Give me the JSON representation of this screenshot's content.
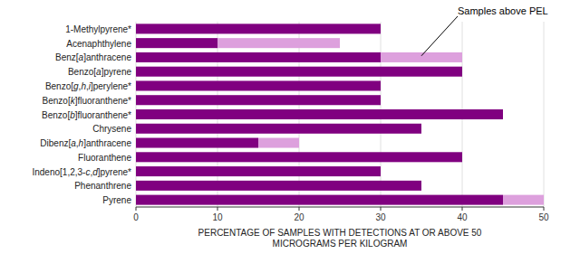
{
  "chart_data": {
    "type": "bar",
    "orientation": "horizontal",
    "stacked": true,
    "grid": true,
    "categories": [
      "1-Methylpyrene*",
      "Acenaphthylene",
      "Benz[a]anthracene",
      "Benzo[a]pyrene",
      "Benzo[g,h,i]perylene*",
      "Benzo[k]fluoranthene*",
      "Benzo[b]fluoranthene*",
      "Chrysene",
      "Dibenz[a,h]anthracene",
      "Fluoranthene",
      "Indeno[1,2,3-c,d]pyrene*",
      "Phenanthrene",
      "Pyrene"
    ],
    "series": [
      {
        "color": "#800080",
        "values": [
          30,
          10,
          30,
          40,
          30,
          30,
          45,
          35,
          15,
          40,
          30,
          35,
          45
        ]
      },
      {
        "color": "#DDA0DD",
        "values": [
          0,
          15,
          10,
          0,
          0,
          0,
          0,
          0,
          5,
          0,
          0,
          0,
          5
        ]
      }
    ],
    "xlim": [
      0,
      50
    ],
    "xticks": [
      0,
      10,
      20,
      30,
      40,
      50
    ],
    "xlabel": [
      "PERCENTAGE OF SAMPLES WITH DETECTIONS AT OR ABOVE 50",
      "MICROGRAMS PER KILOGRAM"
    ],
    "annotations": [
      {
        "text": "Samples above PEL",
        "category": "Benz[a]anthracene"
      }
    ]
  }
}
